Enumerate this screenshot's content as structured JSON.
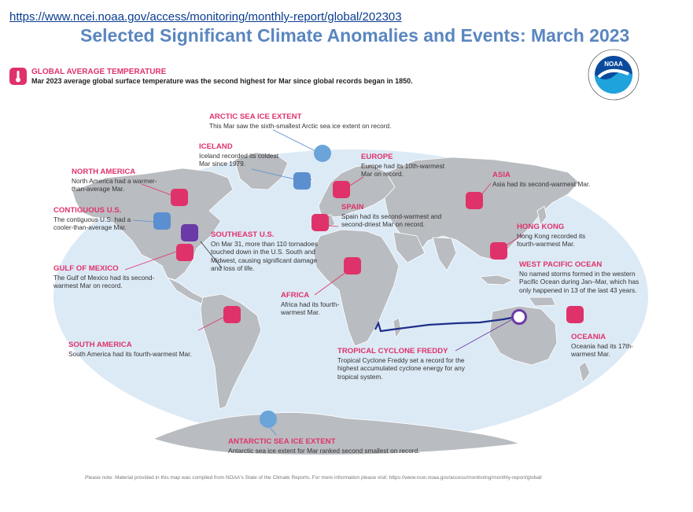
{
  "source_url": "https://www.ncei.noaa.gov/access/monitoring/monthly-report/global/202303",
  "title": "Selected Significant Climate Anomalies and Events: March 2023",
  "global": {
    "heading": "GLOBAL AVERAGE TEMPERATURE",
    "text": "Mar 2023 average global surface temperature was the second highest for Mar since global records began in 1850."
  },
  "logo_text": "NOAA",
  "events": {
    "arctic": {
      "heading": "ARCTIC SEA ICE EXTENT",
      "text": "This Mar saw the sixth-smallest Arctic sea ice extent on record."
    },
    "iceland": {
      "heading": "ICELAND",
      "text": "Iceland recorded its coldest Mar since 1979."
    },
    "europe": {
      "heading": "EUROPE",
      "text": "Europe had its 10th-warmest Mar on record."
    },
    "asia": {
      "heading": "ASIA",
      "text": "Asia had its second-warmest Mar."
    },
    "north_america": {
      "heading": "NORTH AMERICA",
      "text": "North America had a warmer-than-average Mar."
    },
    "contiguous_us": {
      "heading": "CONTIGUOUS U.S.",
      "text": "The contiguous U.S. had a cooler-than-average Mar."
    },
    "spain": {
      "heading": "SPAIN",
      "text": "Spain had its second-warmest and second-driest Mar on record."
    },
    "hong_kong": {
      "heading": "HONG KONG",
      "text": "Hong Kong recorded its fourth-warmest Mar."
    },
    "southeast_us": {
      "heading": "SOUTHEAST U.S.",
      "text": "On Mar 31, more than 110 tornadoes touched down in the U.S. South and Midwest, causing significant damage and loss of life."
    },
    "west_pacific": {
      "heading": "WEST PACIFIC OCEAN",
      "text": "No named storms formed in the western Pacific Ocean during Jan–Mar, which has only happened in 13 of the last 43 years."
    },
    "gulf": {
      "heading": "GULF OF MEXICO",
      "text": "The Gulf of Mexico had its second-warmest Mar on record."
    },
    "africa": {
      "heading": "AFRICA",
      "text": "Africa had its fourth-warmest Mar."
    },
    "south_america": {
      "heading": "SOUTH AMERICA",
      "text": "South America had its fourth-warmest Mar."
    },
    "freddy": {
      "heading": "TROPICAL CYCLONE FREDDY",
      "text": "Tropical Cyclone Freddy set a record for the highest accumulated cyclone energy for any tropical system."
    },
    "oceania": {
      "heading": "OCEANIA",
      "text": "Oceania had its 17th-warmest Mar."
    },
    "antarctic": {
      "heading": "ANTARCTIC SEA ICE EXTENT",
      "text": "Antarctic sea ice extent for Mar ranked second smallest on record."
    }
  },
  "footer": "Please note: Material provided in this map was compiled from NOAA's State of the Climate Reports. For more information please visit: https://www.ncei.noaa.gov/access/monitoring/monthly-report/global/",
  "colors": {
    "accent": "#e0326a",
    "warm": "#e0326a",
    "cold": "#5b8fd0",
    "ocean": "#dceaf6",
    "land": "#b9bcc0",
    "track": "#1e2f8a",
    "title": "#5a86c0"
  }
}
